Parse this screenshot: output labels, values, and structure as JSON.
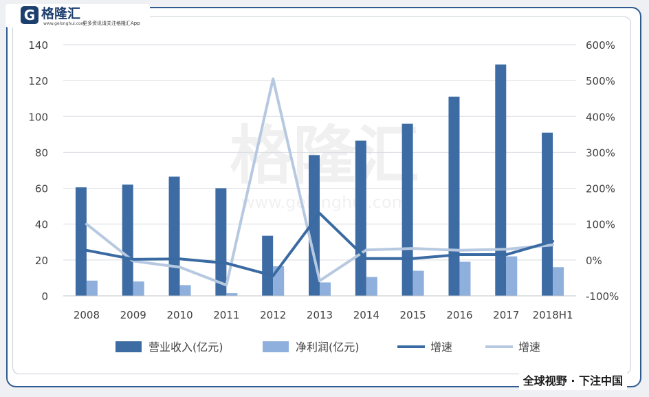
{
  "branding": {
    "logo_mark": "G",
    "logo_name": "格隆汇",
    "logo_domain": "www.gelonghui.com",
    "logo_slogan": "更多资讯请关注格隆汇App",
    "footer_tag": "全球视野 · 下注中国",
    "watermark_main": "格隆汇",
    "watermark_url": "www.gelonghui.com"
  },
  "colors": {
    "revenue": "#3d6ba3",
    "profit": "#8fb0dc",
    "growth1": "#3a6aa2",
    "growth2": "#b6c9e0",
    "frame": "#2f5b91"
  },
  "chart_data": {
    "type": "bar",
    "categories": [
      "2008",
      "2009",
      "2010",
      "2011",
      "2012",
      "2013",
      "2014",
      "2015",
      "2016",
      "2017",
      "2018H1"
    ],
    "ylim": [
      0,
      140
    ],
    "y_ticks": [
      "0",
      "20",
      "40",
      "60",
      "80",
      "100",
      "120",
      "140"
    ],
    "y2lim": [
      -100,
      600
    ],
    "y2_ticks": [
      "-100%",
      "0%",
      "100%",
      "200%",
      "300%",
      "400%",
      "500%",
      "600%"
    ],
    "grid": true,
    "legend_position": "bottom",
    "series": [
      {
        "name": "营业收入(亿元)",
        "type": "bar",
        "axis": "left",
        "values": [
          60.5,
          62,
          66.5,
          60,
          33.5,
          78.5,
          86.5,
          96,
          111,
          129,
          91
        ]
      },
      {
        "name": "净利润(亿元)",
        "type": "bar",
        "axis": "left",
        "values": [
          8.5,
          8,
          6,
          1.5,
          16.5,
          7.5,
          10.5,
          14,
          19,
          22,
          16
        ]
      },
      {
        "name": "增速",
        "type": "line",
        "axis": "right",
        "values": [
          27,
          2,
          3,
          -9,
          -44,
          130,
          4,
          4,
          15,
          15,
          52
        ]
      },
      {
        "name": "增速",
        "type": "line",
        "axis": "right",
        "values": [
          100,
          -3,
          -20,
          -70,
          505,
          -58,
          28,
          32,
          27,
          30,
          42
        ]
      }
    ]
  }
}
